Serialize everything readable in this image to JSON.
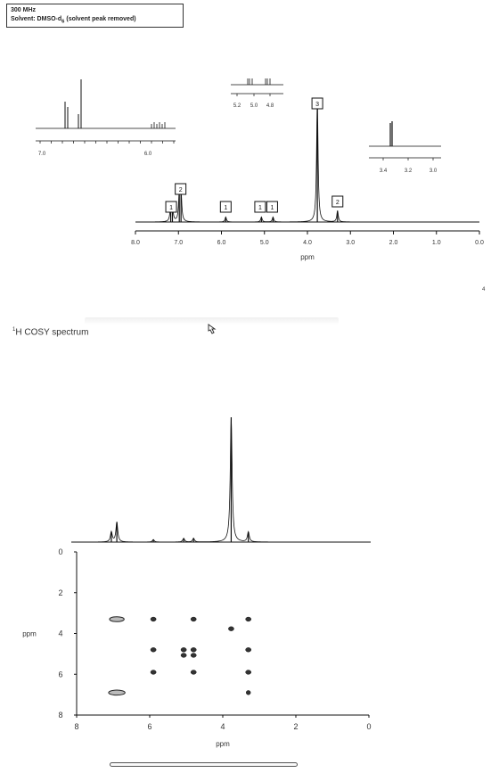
{
  "header": {
    "frequency": "300 MHz",
    "solvent_prefix": "Solvent: DMSO-d",
    "solvent_sub": "6",
    "solvent_suffix": " (solvent peak removed)"
  },
  "page_number": "4",
  "cosy_title_sup": "1",
  "cosy_title": "H COSY spectrum",
  "chart_data": [
    {
      "type": "line",
      "xlabel": "ppm",
      "xlim": [
        8.0,
        0.0
      ],
      "xticks": [
        8.0,
        7.0,
        6.0,
        5.0,
        4.0,
        3.0,
        2.0,
        1.0,
        0.0
      ],
      "xtick_labels": [
        "8.0",
        "7.0",
        "6.0",
        "5.0",
        "4.0",
        "3.0",
        "2.0",
        "1.0",
        "0.0"
      ],
      "peaks": [
        {
          "ppm": 7.18,
          "height": 0.12
        },
        {
          "ppm": 7.14,
          "height": 0.12
        },
        {
          "ppm": 6.98,
          "height": 0.22
        },
        {
          "ppm": 6.94,
          "height": 0.22
        },
        {
          "ppm": 5.9,
          "height": 0.04
        },
        {
          "ppm": 5.07,
          "height": 0.04
        },
        {
          "ppm": 4.8,
          "height": 0.04
        },
        {
          "ppm": 3.77,
          "height": 1.0
        },
        {
          "ppm": 3.3,
          "height": 0.09
        }
      ],
      "integrations": [
        {
          "label": "1",
          "ppm": 7.17
        },
        {
          "label": "2",
          "ppm": 6.95
        },
        {
          "label": "1",
          "ppm": 5.9
        },
        {
          "label": "1",
          "ppm": 5.1
        },
        {
          "label": "1",
          "ppm": 4.82
        },
        {
          "label": "3",
          "ppm": 3.77
        },
        {
          "label": "2",
          "ppm": 3.3
        }
      ],
      "insets": [
        {
          "xticks": [
            "7.0",
            "6.0"
          ]
        },
        {
          "xticks": [
            "5.2",
            "5.0",
            "4.8"
          ]
        },
        {
          "xticks": [
            "3.4",
            "3.2",
            "3.0"
          ]
        }
      ]
    },
    {
      "type": "scatter",
      "xlabel": "ppm",
      "ylabel": "ppm",
      "xlim": [
        8,
        0
      ],
      "ylim": [
        0,
        8
      ],
      "xticks": [
        8,
        6,
        4,
        2,
        0
      ],
      "xtick_labels": [
        "8",
        "6",
        "4",
        "2",
        "0"
      ],
      "yticks": [
        0,
        2,
        4,
        6,
        8
      ],
      "ytick_labels": [
        "0",
        "2",
        "4",
        "6",
        "8"
      ],
      "projection_peaks": [
        {
          "ppm": 7.05,
          "height": 0.08
        },
        {
          "ppm": 6.9,
          "height": 0.16
        },
        {
          "ppm": 5.9,
          "height": 0.02
        },
        {
          "ppm": 5.07,
          "height": 0.03
        },
        {
          "ppm": 4.8,
          "height": 0.03
        },
        {
          "ppm": 3.77,
          "height": 1.0
        },
        {
          "ppm": 3.3,
          "height": 0.08
        }
      ],
      "cross_peaks": [
        {
          "x": 6.9,
          "y": 3.3,
          "w": 0.4
        },
        {
          "x": 5.9,
          "y": 3.3,
          "w": 0.15
        },
        {
          "x": 4.8,
          "y": 3.3,
          "w": 0.15
        },
        {
          "x": 3.3,
          "y": 3.3,
          "w": 0.15
        },
        {
          "x": 3.77,
          "y": 3.77,
          "w": 0.15
        },
        {
          "x": 5.9,
          "y": 4.8,
          "w": 0.15
        },
        {
          "x": 5.07,
          "y": 4.8,
          "w": 0.15
        },
        {
          "x": 4.8,
          "y": 4.8,
          "w": 0.15
        },
        {
          "x": 3.3,
          "y": 4.8,
          "w": 0.15
        },
        {
          "x": 5.07,
          "y": 5.07,
          "w": 0.15
        },
        {
          "x": 4.8,
          "y": 5.07,
          "w": 0.15
        },
        {
          "x": 5.9,
          "y": 5.9,
          "w": 0.15
        },
        {
          "x": 4.8,
          "y": 5.9,
          "w": 0.15
        },
        {
          "x": 3.3,
          "y": 5.9,
          "w": 0.15
        },
        {
          "x": 6.9,
          "y": 6.9,
          "w": 0.45
        },
        {
          "x": 3.3,
          "y": 6.9,
          "w": 0.12
        }
      ]
    }
  ]
}
